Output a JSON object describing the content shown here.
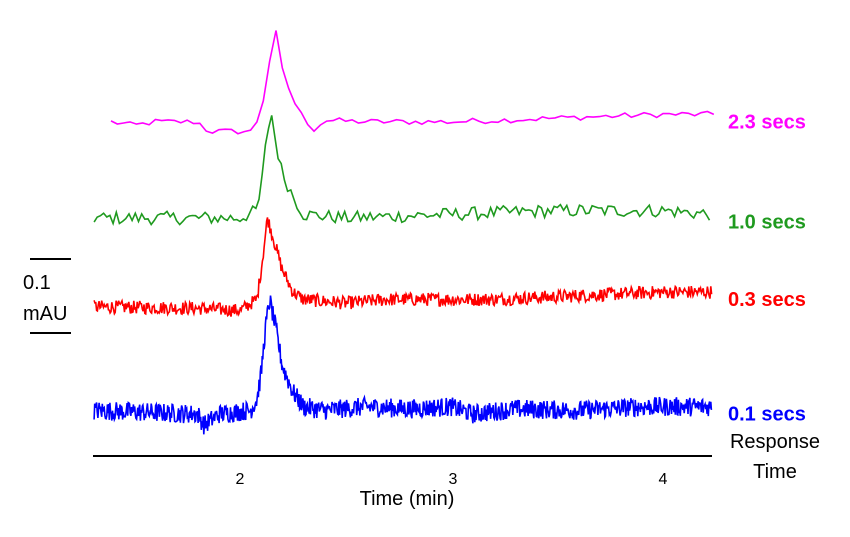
{
  "chart_data": {
    "type": "line",
    "title": "",
    "xlabel": "Time (min)",
    "ylabel": "",
    "xlim": [
      1.31,
      4.23
    ],
    "x_ticks": [
      "2",
      "3",
      "4"
    ],
    "x_tick_values": [
      2,
      3,
      4
    ],
    "ylim": [
      0,
      0.6
    ],
    "y_unit": "mAU",
    "scale_bar": {
      "value": "0.1",
      "unit": "mAU",
      "value_num": 0.1
    },
    "legend_title": [
      "Response",
      "Time"
    ],
    "grid": false,
    "stacked_offset_traces": true,
    "series": [
      {
        "name": "2.3 secs",
        "color": "#ff00ff",
        "noise_amplitude": 0.004,
        "sample_step": 0.03,
        "x": [
          1.39,
          1.5,
          1.6,
          1.8,
          1.85,
          2.05,
          2.1,
          2.13,
          2.17,
          2.2,
          2.25,
          2.3,
          2.35,
          2.4,
          2.6,
          3.0,
          3.5,
          4.0,
          4.25
        ],
        "y": [
          0.43,
          0.425,
          0.43,
          0.43,
          0.417,
          0.417,
          0.44,
          0.5,
          0.55,
          0.5,
          0.46,
          0.435,
          0.42,
          0.432,
          0.43,
          0.43,
          0.435,
          0.44,
          0.44
        ]
      },
      {
        "name": "1.0 secs",
        "color": "#1f9a1f",
        "noise_amplitude": 0.009,
        "sample_step": 0.015,
        "x": [
          1.31,
          2.0,
          2.08,
          2.1,
          2.13,
          2.15,
          2.17,
          2.2,
          2.25,
          2.3,
          2.5,
          3.0,
          3.5,
          4.0,
          4.23
        ],
        "y": [
          0.3,
          0.3,
          0.31,
          0.34,
          0.42,
          0.439,
          0.4,
          0.36,
          0.33,
          0.305,
          0.3,
          0.305,
          0.31,
          0.31,
          0.305
        ]
      },
      {
        "name": "0.3 secs",
        "color": "#ff0000",
        "noise_amplitude": 0.009,
        "sample_step": 0.004,
        "x": [
          1.31,
          1.8,
          2.0,
          2.08,
          2.1,
          2.13,
          2.16,
          2.2,
          2.25,
          2.3,
          2.5,
          2.7,
          3.0,
          3.2,
          3.6,
          4.0,
          4.23
        ],
        "y": [
          0.18,
          0.178,
          0.175,
          0.19,
          0.23,
          0.3,
          0.27,
          0.23,
          0.2,
          0.19,
          0.185,
          0.19,
          0.19,
          0.19,
          0.195,
          0.2,
          0.2
        ]
      },
      {
        "name": "0.1 secs",
        "color": "#0000ff",
        "noise_amplitude": 0.013,
        "sample_step": 0.003,
        "x": [
          1.31,
          1.8,
          1.83,
          1.9,
          2.05,
          2.08,
          2.1,
          2.12,
          2.14,
          2.17,
          2.2,
          2.25,
          2.3,
          2.4,
          2.6,
          2.8,
          3.0,
          3.1,
          3.3,
          3.6,
          3.9,
          4.23
        ],
        "y": [
          0.04,
          0.035,
          0.02,
          0.035,
          0.04,
          0.055,
          0.09,
          0.15,
          0.189,
          0.15,
          0.1,
          0.065,
          0.045,
          0.04,
          0.045,
          0.042,
          0.045,
          0.035,
          0.042,
          0.04,
          0.045,
          0.045
        ]
      }
    ]
  }
}
